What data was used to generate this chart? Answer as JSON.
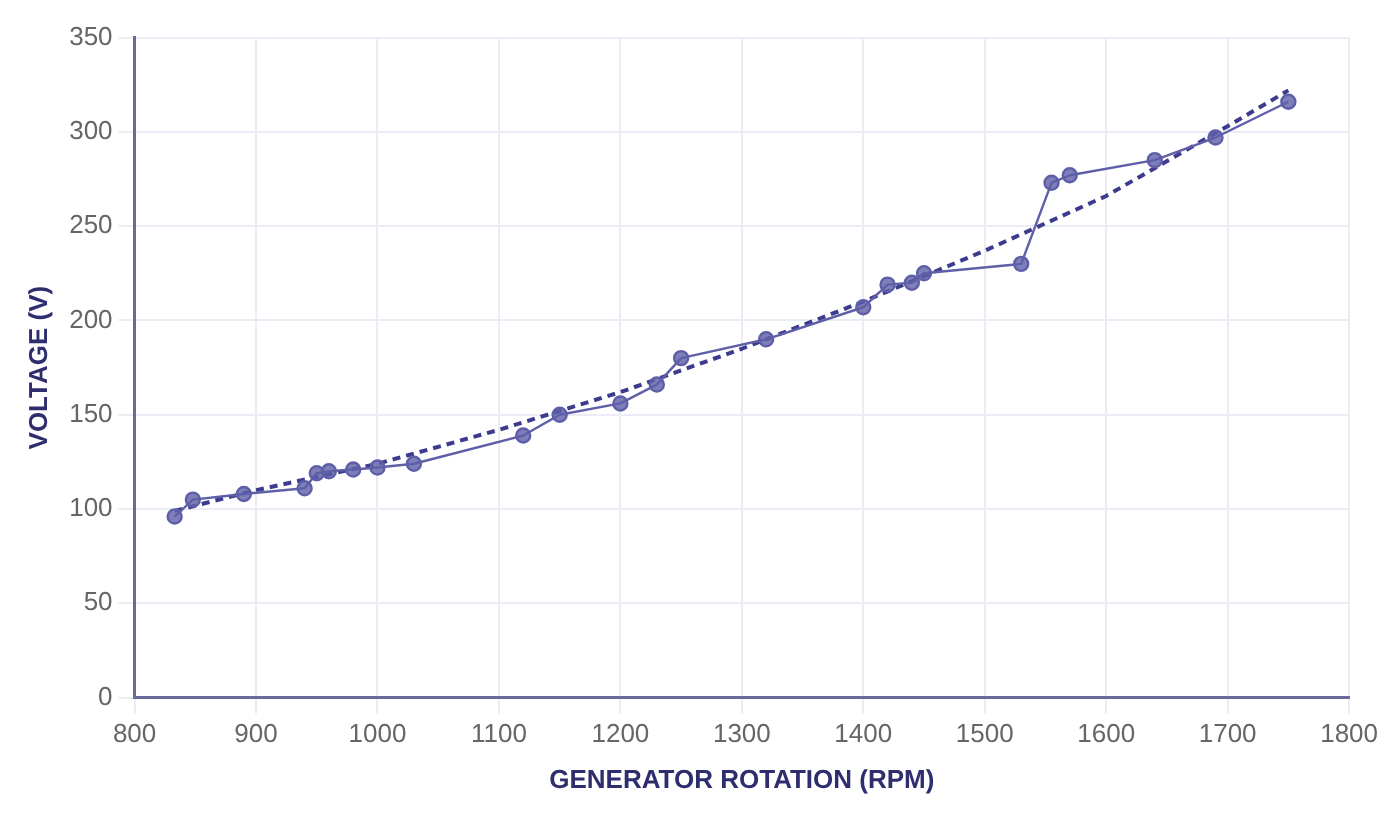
{
  "chart_data": {
    "type": "line",
    "xlabel": "GENERATOR ROTATION (RPM)",
    "ylabel": "VOLTAGE (V)",
    "xlim": [
      800,
      1800
    ],
    "xticks": [
      800,
      900,
      1000,
      1100,
      1200,
      1300,
      1400,
      1500,
      1600,
      1700,
      1800
    ],
    "ylim": [
      0,
      350
    ],
    "yticks": [
      0,
      50,
      100,
      150,
      200,
      250,
      300,
      350
    ],
    "grid": true,
    "legend": false,
    "series": [
      {
        "color": "#5e5fa8",
        "marker": "circle",
        "line_style": "solid",
        "x": [
          833,
          848,
          890,
          940,
          950,
          960,
          980,
          1000,
          1030,
          1120,
          1150,
          1200,
          1230,
          1250,
          1320,
          1400,
          1420,
          1440,
          1450,
          1530,
          1555,
          1570,
          1640,
          1690,
          1750
        ],
        "values": [
          96,
          105,
          108,
          111,
          119,
          120,
          121,
          122,
          124,
          139,
          150,
          156,
          166,
          180,
          190,
          207,
          219,
          220,
          225,
          230,
          273,
          277,
          285,
          297,
          316
        ]
      },
      {
        "color": "#3d3b8e",
        "marker": "none",
        "line_style": "dashed",
        "x": [
          833,
          900,
          1000,
          1100,
          1200,
          1300,
          1400,
          1500,
          1600,
          1700,
          1750
        ],
        "values": [
          99,
          110,
          124,
          142,
          162,
          185,
          210,
          237,
          266,
          303,
          322
        ]
      }
    ]
  }
}
